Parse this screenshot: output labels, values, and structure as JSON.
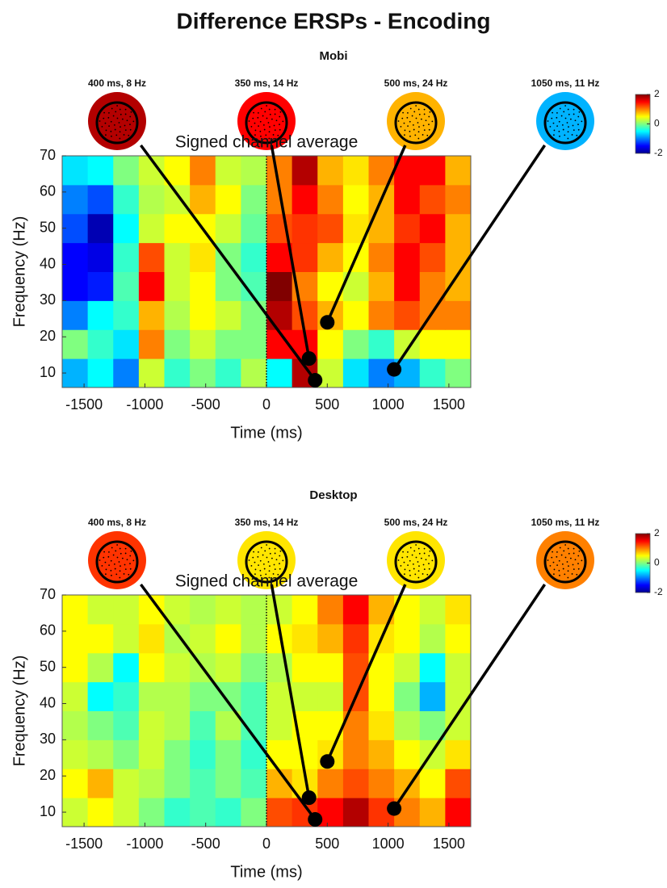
{
  "title": "Difference ERSPs - Encoding",
  "chart_data": [
    {
      "type": "heatmap",
      "title": "Mobi",
      "subtitle": "Signed channel average",
      "xlabel": "Time (ms)",
      "ylabel": "Frequency (Hz)",
      "xlim": [
        -1680,
        1680
      ],
      "ylim": [
        6,
        70
      ],
      "xticks": [
        -1500,
        -1000,
        -500,
        0,
        500,
        1000,
        1500
      ],
      "yticks": [
        10,
        20,
        30,
        40,
        50,
        60,
        70
      ],
      "vline": 0,
      "x_edges": [
        -1680,
        -1470,
        -1260,
        -1050,
        -840,
        -630,
        -420,
        -210,
        0,
        210,
        420,
        630,
        840,
        1050,
        1260,
        1470,
        1680
      ],
      "y_edges": [
        6,
        14,
        22,
        30,
        38,
        46,
        54,
        62,
        70
      ],
      "z": [
        [
          -0.8,
          -0.5,
          -1,
          0.3,
          -0.3,
          0,
          -0.3,
          0.2,
          -0.5,
          1.8,
          0.3,
          -0.6,
          -1,
          -0.8,
          -0.3,
          0
        ],
        [
          0,
          -0.3,
          -0.6,
          1,
          0,
          0.3,
          0,
          0,
          1.5,
          1.5,
          0.5,
          0,
          -0.3,
          0.3,
          0.5,
          0.5
        ],
        [
          -1,
          -0.5,
          -0.3,
          0.8,
          0.2,
          0.5,
          0.3,
          0,
          1.8,
          1.2,
          0.8,
          0.5,
          1,
          1.2,
          1,
          1
        ],
        [
          -1.5,
          -1.4,
          -0.2,
          1.5,
          0.3,
          0.5,
          0,
          -0.2,
          2,
          1,
          0.5,
          0.3,
          0.8,
          1.5,
          1,
          0.8
        ],
        [
          -1.5,
          -1.6,
          -0.3,
          1.2,
          0.3,
          0.6,
          0,
          -0.3,
          1.5,
          1.3,
          0.8,
          0.5,
          1,
          1.5,
          1.2,
          0.8
        ],
        [
          -1.2,
          -1.8,
          -0.5,
          0.3,
          0.5,
          0.5,
          0.3,
          -0.1,
          1.2,
          1.3,
          1.2,
          0.6,
          0.8,
          1.3,
          1.5,
          0.8
        ],
        [
          -1,
          -1.2,
          -0.3,
          0.2,
          0.3,
          0.8,
          0.5,
          0,
          1,
          1.5,
          1,
          0.5,
          0.8,
          1.5,
          1.2,
          1
        ],
        [
          -0.6,
          -0.5,
          0,
          0.3,
          0.5,
          1,
          0.3,
          0.2,
          1,
          1.8,
          0.8,
          0.6,
          1,
          1.5,
          1.5,
          0.8
        ]
      ],
      "clim": [
        -2,
        2
      ],
      "cticks": [
        -2,
        0,
        2
      ],
      "markers": [
        {
          "x": 400,
          "y": 8,
          "label": "400 ms, 8 Hz"
        },
        {
          "x": 350,
          "y": 14,
          "label": "350 ms, 14 Hz"
        },
        {
          "x": 500,
          "y": 24,
          "label": "500 ms, 24 Hz"
        },
        {
          "x": 1050,
          "y": 11,
          "label": "1050 ms, 11 Hz"
        }
      ]
    },
    {
      "type": "heatmap",
      "title": "Desktop",
      "subtitle": "Signed channel average",
      "xlabel": "Time (ms)",
      "ylabel": "Frequency (Hz)",
      "xlim": [
        -1680,
        1680
      ],
      "ylim": [
        6,
        70
      ],
      "xticks": [
        -1500,
        -1000,
        -500,
        0,
        500,
        1000,
        1500
      ],
      "yticks": [
        10,
        20,
        30,
        40,
        50,
        60,
        70
      ],
      "vline": 0,
      "x_edges": [
        -1680,
        -1470,
        -1260,
        -1050,
        -840,
        -630,
        -420,
        -210,
        0,
        210,
        420,
        630,
        840,
        1050,
        1260,
        1470,
        1680
      ],
      "y_edges": [
        6,
        14,
        22,
        30,
        38,
        46,
        54,
        62,
        70
      ],
      "z": [
        [
          0.3,
          0.5,
          0.3,
          0,
          -0.3,
          -0.2,
          -0.3,
          0,
          1.2,
          1.3,
          1.5,
          1.8,
          1.3,
          1,
          0.8,
          1.5
        ],
        [
          0.5,
          0.8,
          0.3,
          0.2,
          0,
          -0.2,
          0,
          -0.2,
          0.8,
          0.6,
          1,
          1.2,
          1,
          0.8,
          0.5,
          1.2
        ],
        [
          0.3,
          0.2,
          0,
          0.3,
          0,
          -0.3,
          0,
          -0.3,
          0.5,
          0.5,
          0.6,
          1,
          0.8,
          0.5,
          0.3,
          0.6
        ],
        [
          0.2,
          0,
          -0.2,
          0.3,
          0.2,
          -0.2,
          0.2,
          -0.2,
          0.3,
          0.5,
          0.5,
          1,
          0.6,
          0.2,
          0,
          0.3
        ],
        [
          0.3,
          -0.5,
          -0.3,
          0.2,
          0.2,
          0,
          0,
          -0.2,
          0.3,
          0.3,
          0.3,
          1.2,
          0.5,
          0,
          -0.8,
          0.3
        ],
        [
          0.5,
          0.2,
          -0.5,
          0.5,
          0.3,
          0.2,
          0.3,
          0,
          0.2,
          0.5,
          0.5,
          1.2,
          0.5,
          0.3,
          -0.5,
          0.3
        ],
        [
          0.5,
          0.5,
          0.3,
          0.6,
          0.2,
          0.3,
          0.5,
          0.2,
          0.5,
          0.6,
          0.8,
          1.3,
          0.6,
          0.5,
          0.2,
          0.5
        ],
        [
          0.5,
          0.3,
          0.3,
          0.5,
          0.3,
          0.2,
          0.3,
          0.2,
          0.3,
          0.5,
          1,
          1.5,
          0.8,
          0.5,
          0.3,
          0.6
        ]
      ],
      "clim": [
        -2,
        2
      ],
      "cticks": [
        -2,
        0,
        2
      ],
      "markers": [
        {
          "x": 400,
          "y": 8,
          "label": "400 ms, 8 Hz"
        },
        {
          "x": 350,
          "y": 14,
          "label": "350 ms, 14 Hz"
        },
        {
          "x": 500,
          "y": 24,
          "label": "500 ms, 24 Hz"
        },
        {
          "x": 1050,
          "y": 11,
          "label": "1050 ms, 11 Hz"
        }
      ]
    }
  ]
}
